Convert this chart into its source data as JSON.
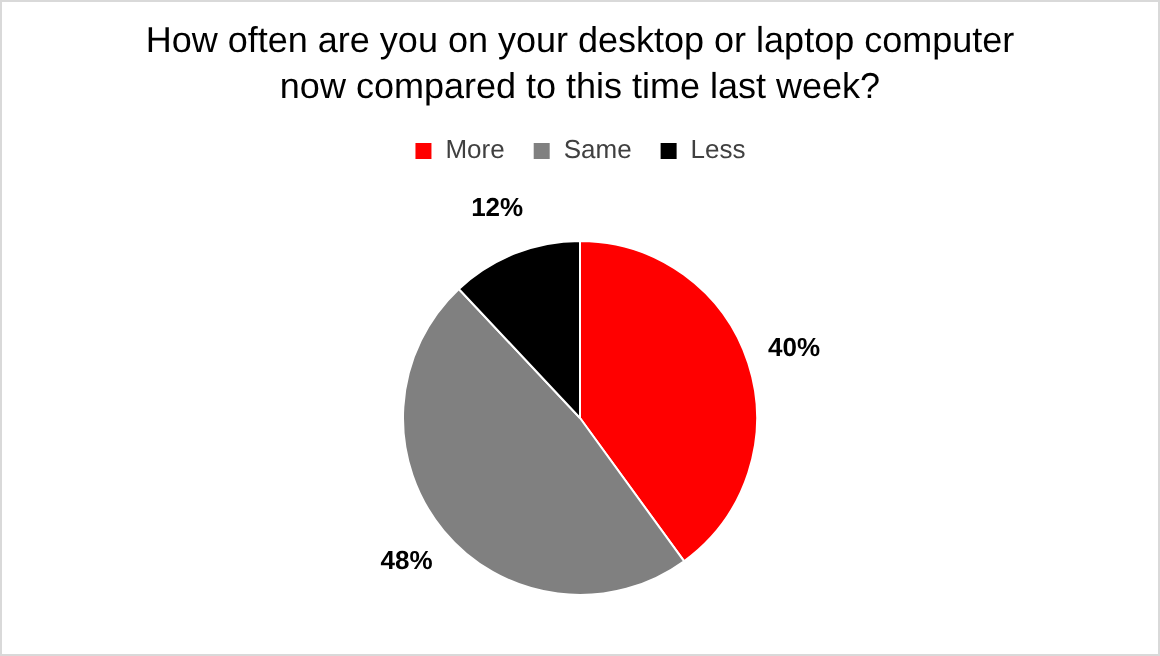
{
  "chart_data": {
    "type": "pie",
    "title": "How often are you on your desktop or laptop computer now compared to this time last week?",
    "categories": [
      "More",
      "Same",
      "Less"
    ],
    "values": [
      40,
      48,
      12
    ],
    "colors": [
      "#ff0000",
      "#808080",
      "#000000"
    ],
    "value_labels": [
      "40%",
      "48%",
      "12%"
    ],
    "legend": "top"
  }
}
